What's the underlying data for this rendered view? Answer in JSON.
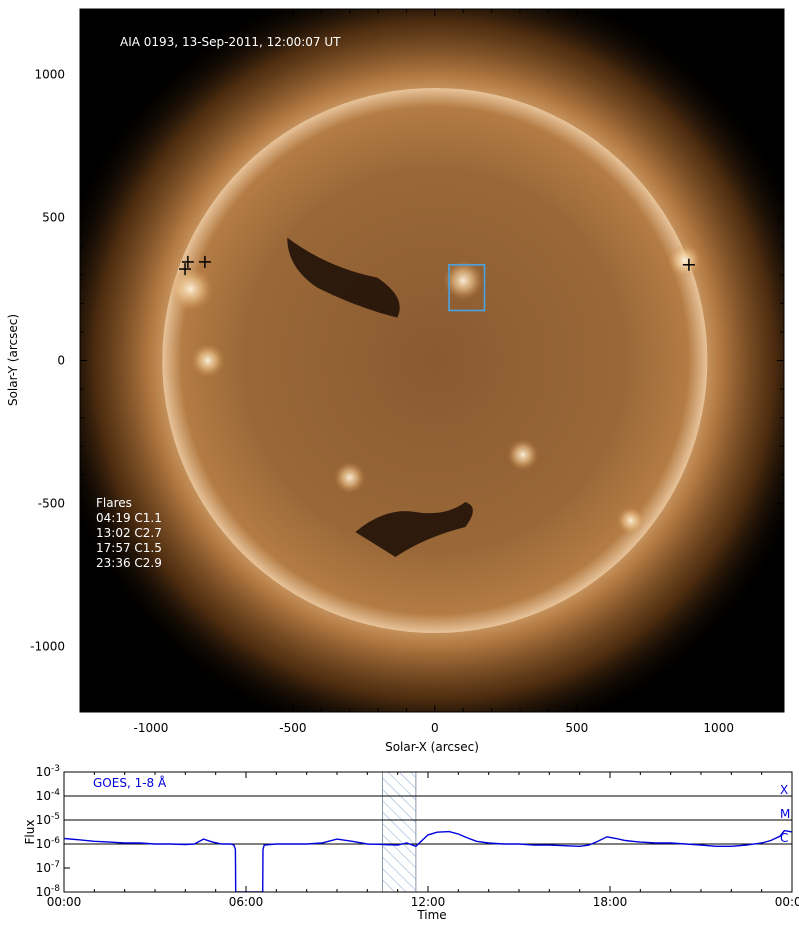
{
  "image_panel": {
    "title": "AIA 0193, 13-Sep-2011, 12:00:07 UT",
    "xlabel": "Solar-X (arcsec)",
    "ylabel": "Solar-Y (arcsec)",
    "xlim": [
      -1250,
      1230
    ],
    "ylim": [
      -1230,
      1230
    ],
    "x_ticks": [
      -1000,
      -500,
      0,
      500,
      1000
    ],
    "y_ticks": [
      1000,
      500,
      0,
      -500,
      -1000
    ],
    "x_tick_labels": [
      "-1000",
      "-500",
      "0",
      "500",
      "1000"
    ],
    "y_tick_labels": [
      "1000",
      "500",
      "0",
      "-500",
      "-1000"
    ],
    "solar_radius_arcsec": 960,
    "region_box": {
      "x0": 50,
      "y0": 175,
      "x1": 175,
      "y1": 335,
      "color": "#4aa3e0"
    },
    "flare_markers": [
      {
        "x": -880,
        "y": 320
      },
      {
        "x": -870,
        "y": 345
      },
      {
        "x": -810,
        "y": 345
      },
      {
        "x": 895,
        "y": 335
      }
    ],
    "flare_list_title": "Flares",
    "flare_list": [
      "04:19 C1.1",
      "13:02 C2.7",
      "17:57 C1.5",
      "23:36 C2.9"
    ]
  },
  "chart_data": {
    "type": "line",
    "title": "GOES, 1-8 Å",
    "xlabel": "Time",
    "ylabel": "Flux",
    "scale_y": "log",
    "xlim_hours": [
      0,
      24
    ],
    "ylim": [
      1e-08,
      0.001
    ],
    "x_ticks": [
      0,
      6,
      12,
      18,
      24
    ],
    "x_tick_labels": [
      "00:00",
      "06:00",
      "12:00",
      "18:00",
      "00:00"
    ],
    "y_tick_exponents": [
      -3,
      -4,
      -5,
      -6,
      -7,
      -8
    ],
    "y_tick_base": "10",
    "class_lines": [
      {
        "label": "X",
        "flux": 0.0001
      },
      {
        "label": "M",
        "flux": 1e-05
      },
      {
        "label": "C",
        "flux": 1e-06
      }
    ],
    "highlight_window_hours": [
      10.5,
      11.6
    ],
    "series": [
      {
        "color": "#0000dd",
        "x": [
          0,
          0.5,
          1,
          1.5,
          2,
          2.5,
          3,
          3.5,
          4,
          4.3,
          4.6,
          4.9,
          5.2,
          5.5,
          5.6,
          5.65,
          5.66,
          6.55,
          6.56,
          6.6,
          7,
          7.5,
          8,
          8.5,
          9,
          9.5,
          10,
          10.5,
          11,
          11.3,
          11.6,
          12,
          12.3,
          12.7,
          13,
          13.3,
          13.6,
          14,
          14.5,
          15,
          15.5,
          16,
          16.5,
          17,
          17.3,
          17.6,
          17.9,
          18.2,
          18.5,
          19,
          19.5,
          20,
          20.5,
          21,
          21.5,
          22,
          22.5,
          23,
          23.3,
          23.6,
          23.75,
          24
        ],
        "y": [
          1.7e-06,
          1.5e-06,
          1.3e-06,
          1.2e-06,
          1.1e-06,
          1.1e-06,
          1e-06,
          1e-06,
          9.5e-07,
          1e-06,
          1.6e-06,
          1.2e-06,
          1e-06,
          1e-06,
          9e-07,
          6e-07,
          1e-08,
          1e-08,
          6e-07,
          9e-07,
          1e-06,
          1e-06,
          1e-06,
          1.1e-06,
          1.6e-06,
          1.3e-06,
          1e-06,
          9.5e-07,
          9e-07,
          1.1e-06,
          8e-07,
          2.4e-06,
          3.1e-06,
          3.3e-06,
          2.6e-06,
          1.8e-06,
          1.3e-06,
          1.1e-06,
          1e-06,
          1e-06,
          9e-07,
          9e-07,
          8.5e-07,
          8e-07,
          9e-07,
          1.3e-06,
          2e-06,
          1.7e-06,
          1.4e-06,
          1.2e-06,
          1.1e-06,
          1.1e-06,
          1e-06,
          9e-07,
          8e-07,
          8e-07,
          9e-07,
          1.1e-06,
          1.4e-06,
          2.1e-06,
          3.6e-06,
          3.2e-06
        ]
      }
    ]
  }
}
